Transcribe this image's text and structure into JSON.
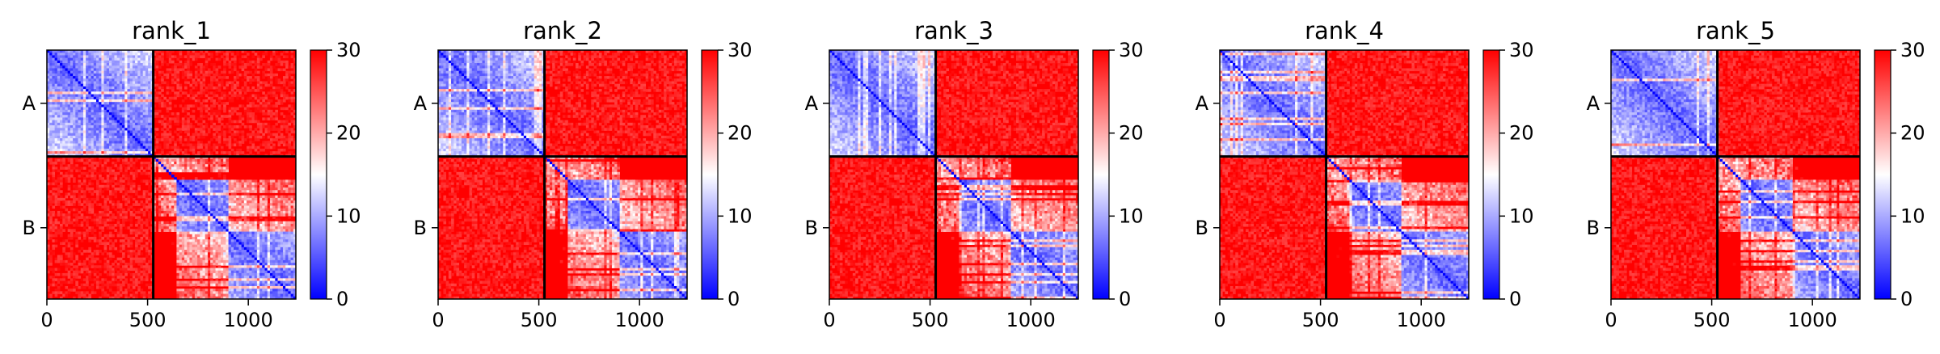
{
  "chart_data": [
    {
      "type": "heatmap",
      "title": "rank_1",
      "xticks": [
        0,
        500,
        1000
      ],
      "xlim": [
        0,
        1236
      ],
      "ylim": [
        1236,
        0
      ],
      "chains": [
        {
          "label": "A",
          "start": 0,
          "end": 528
        },
        {
          "label": "B",
          "start": 528,
          "end": 1236
        }
      ],
      "colorbar": {
        "min": 0,
        "max": 30,
        "ticks": [
          0,
          10,
          20,
          30
        ],
        "colormap": "bwr"
      },
      "seed": 11
    },
    {
      "type": "heatmap",
      "title": "rank_2",
      "xticks": [
        0,
        500,
        1000
      ],
      "xlim": [
        0,
        1236
      ],
      "ylim": [
        1236,
        0
      ],
      "chains": [
        {
          "label": "A",
          "start": 0,
          "end": 528
        },
        {
          "label": "B",
          "start": 528,
          "end": 1236
        }
      ],
      "colorbar": {
        "min": 0,
        "max": 30,
        "ticks": [
          0,
          10,
          20,
          30
        ],
        "colormap": "bwr"
      },
      "seed": 23
    },
    {
      "type": "heatmap",
      "title": "rank_3",
      "xticks": [
        0,
        500,
        1000
      ],
      "xlim": [
        0,
        1236
      ],
      "ylim": [
        1236,
        0
      ],
      "chains": [
        {
          "label": "A",
          "start": 0,
          "end": 528
        },
        {
          "label": "B",
          "start": 528,
          "end": 1236
        }
      ],
      "colorbar": {
        "min": 0,
        "max": 30,
        "ticks": [
          0,
          10,
          20,
          30
        ],
        "colormap": "bwr"
      },
      "seed": 37
    },
    {
      "type": "heatmap",
      "title": "rank_4",
      "xticks": [
        0,
        500,
        1000
      ],
      "xlim": [
        0,
        1236
      ],
      "ylim": [
        1236,
        0
      ],
      "chains": [
        {
          "label": "A",
          "start": 0,
          "end": 528
        },
        {
          "label": "B",
          "start": 528,
          "end": 1236
        }
      ],
      "colorbar": {
        "min": 0,
        "max": 30,
        "ticks": [
          0,
          10,
          20,
          30
        ],
        "colormap": "bwr"
      },
      "seed": 41
    },
    {
      "type": "heatmap",
      "title": "rank_5",
      "xticks": [
        0,
        500,
        1000
      ],
      "xlim": [
        0,
        1236
      ],
      "ylim": [
        1236,
        0
      ],
      "chains": [
        {
          "label": "A",
          "start": 0,
          "end": 528
        },
        {
          "label": "B",
          "start": 528,
          "end": 1236
        }
      ],
      "colorbar": {
        "min": 0,
        "max": 30,
        "ticks": [
          0,
          10,
          20,
          30
        ],
        "colormap": "bwr"
      },
      "seed": 53
    }
  ]
}
